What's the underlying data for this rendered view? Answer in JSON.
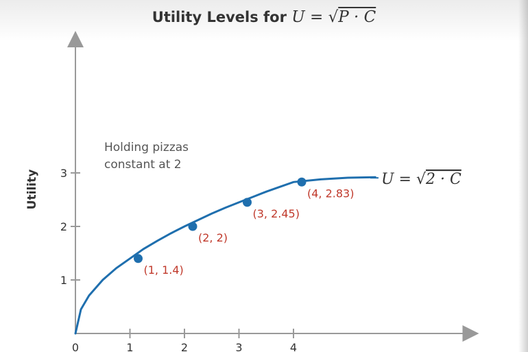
{
  "title": {
    "text": "Utility Levels for ",
    "math_lhs": "U = ",
    "math_radical": "√",
    "math_radicand": "P · C"
  },
  "colors": {
    "curve": "#1f6fae",
    "point": "#1f6fae",
    "point_label": "#c0392b",
    "axis": "#999999",
    "text": "#333333"
  },
  "chart_data": {
    "type": "line",
    "title": "Utility Levels for U = √(P · C)",
    "xlabel": "",
    "ylabel": "Utility",
    "xlim": [
      0,
      7
    ],
    "ylim": [
      0,
      5.5
    ],
    "x_ticks": [
      0,
      1,
      2,
      3,
      4
    ],
    "y_ticks": [
      1,
      2,
      3
    ],
    "grid": false,
    "annotation": "Holding pizzas\nconstant at 2",
    "note_lines": [
      "Holding pizzas",
      "constant at 2"
    ],
    "series": [
      {
        "name": "U = √2 · C",
        "label_lhs": "U = ",
        "label_radical": "√",
        "label_radicand": "2 · C",
        "x": [
          0,
          0.1,
          0.25,
          0.5,
          0.75,
          1,
          1.25,
          1.5,
          1.75,
          2,
          2.25,
          2.5,
          2.75,
          3,
          3.25,
          3.5,
          3.75,
          4,
          4.5,
          5,
          5.5
        ],
        "y": [
          0,
          0.45,
          0.71,
          1.0,
          1.22,
          1.4,
          1.58,
          1.73,
          1.87,
          2.0,
          2.12,
          2.24,
          2.35,
          2.45,
          2.55,
          2.65,
          2.74,
          2.83,
          2.88,
          2.91,
          2.92
        ]
      }
    ],
    "points": [
      {
        "x": 1,
        "y": 1.4,
        "label": "(1, 1.4)"
      },
      {
        "x": 2,
        "y": 2,
        "label": "(2, 2)"
      },
      {
        "x": 3,
        "y": 2.45,
        "label": "(3, 2.45)"
      },
      {
        "x": 4,
        "y": 2.83,
        "label": "(4, 2.83)"
      }
    ]
  }
}
